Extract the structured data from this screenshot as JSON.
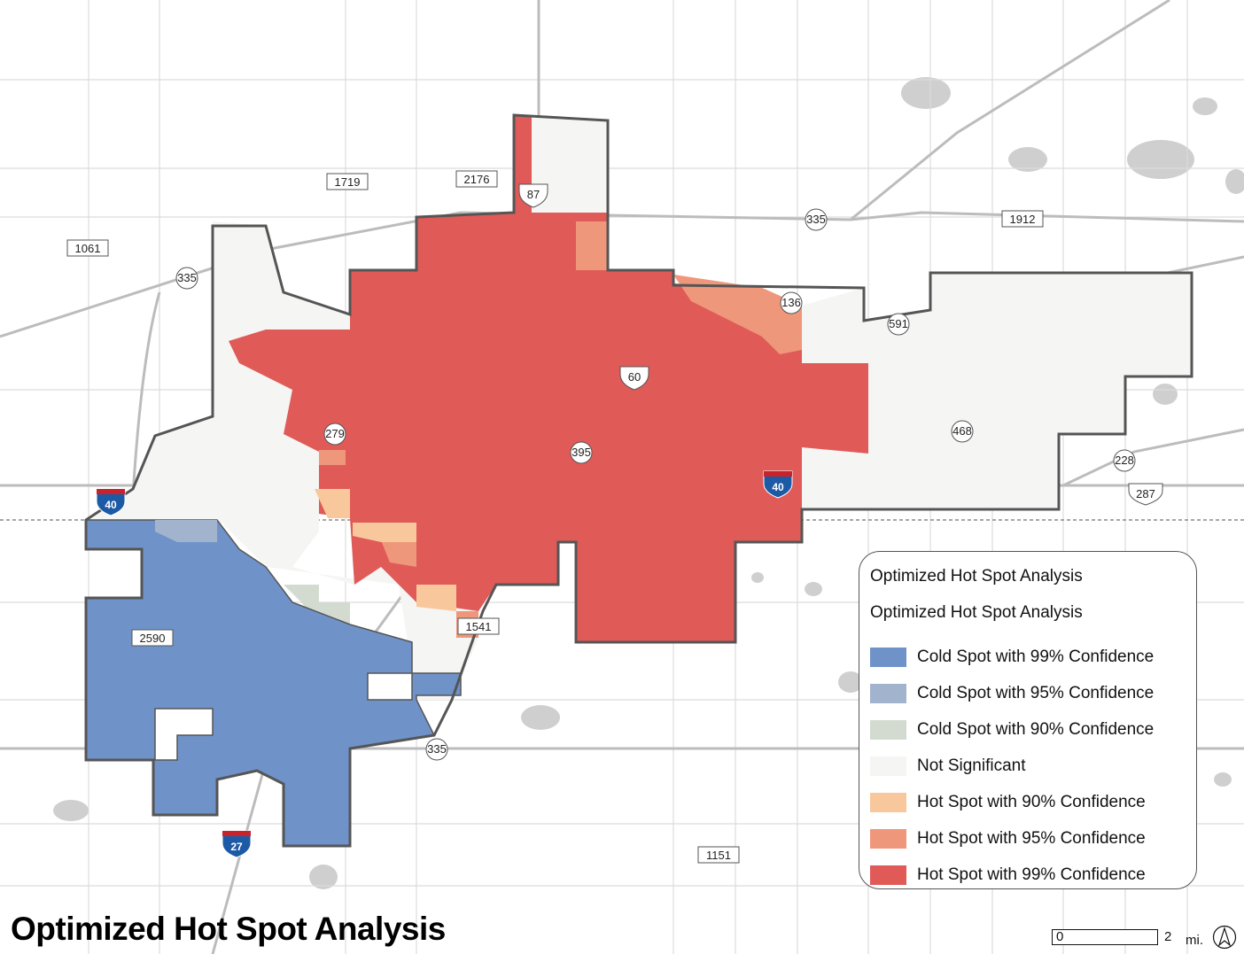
{
  "title": "Optimized Hot Spot Analysis",
  "legend": {
    "heading1": "Optimized Hot Spot Analysis",
    "heading2": "Optimized Hot Spot Analysis",
    "items": [
      {
        "label": "Cold Spot with 99% Confidence",
        "color": "#6f93c9"
      },
      {
        "label": "Cold Spot with 95% Confidence",
        "color": "#a2b4cd"
      },
      {
        "label": "Cold Spot with 90% Confidence",
        "color": "#d3dbd1"
      },
      {
        "label": "Not Significant",
        "color": "#f5f5f3"
      },
      {
        "label": "Hot Spot with 90% Confidence",
        "color": "#f8c89c"
      },
      {
        "label": "Hot Spot with 95% Confidence",
        "color": "#ef977a"
      },
      {
        "label": "Hot Spot with 99% Confidence",
        "color": "#e05a58"
      }
    ]
  },
  "scale": {
    "start": "0",
    "end": "2",
    "unit": "mi."
  },
  "road_labels": {
    "fm_1719": "1719",
    "fm_2176": "2176",
    "fm_1061": "1061",
    "fm_1912": "1912",
    "fm_2590": "2590",
    "fm_1541": "1541",
    "fm_1151": "1151",
    "loop_335_nw": "335",
    "loop_335_ne": "335",
    "loop_335_s": "335",
    "sh_136": "136",
    "sh_591": "591",
    "sh_279": "279",
    "sh_395": "395",
    "sh_468": "468",
    "sh_228": "228",
    "us_87": "87",
    "us_60": "60",
    "us_287": "287",
    "i40_west": "40",
    "i40_east": "40",
    "i27": "27"
  }
}
